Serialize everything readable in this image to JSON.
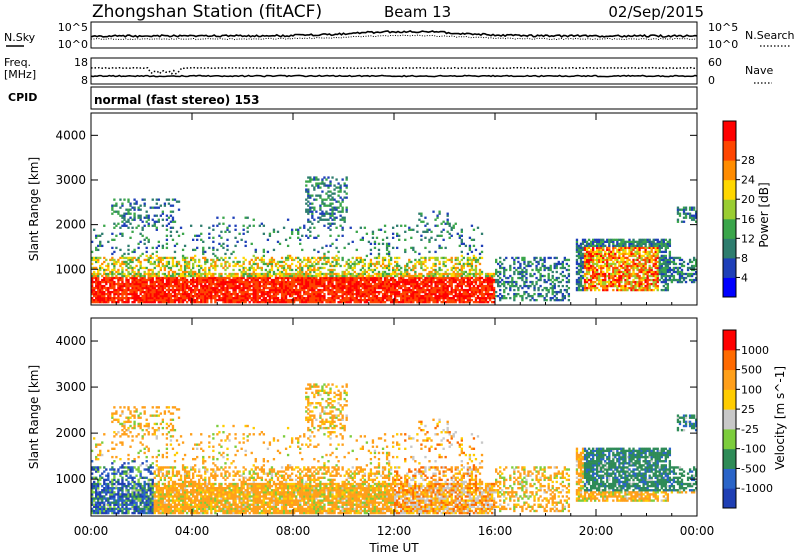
{
  "header": {
    "title": "Zhongshan Station (fitACF)",
    "beam": "Beam 13",
    "date": "02/Sep/2015"
  },
  "noise_panel": {
    "left_label": "N.Sky",
    "left_ticks": [
      "10^5",
      "10^0"
    ],
    "right_label": "N.Search",
    "right_ticks": [
      "10^5",
      "10^0"
    ]
  },
  "freq_panel": {
    "left_label_1": "Freq.",
    "left_label_2": "[MHz]",
    "left_ticks": [
      "18",
      "8"
    ],
    "right_label": "Nave",
    "right_ticks": [
      "60",
      "0"
    ]
  },
  "cpid": {
    "label": "CPID",
    "mode": "normal (fast stereo) 153"
  },
  "chart_data": [
    {
      "type": "heatmap",
      "name": "power",
      "ylabel": "Slant Range [km]",
      "ylim": [
        200,
        4500
      ],
      "yticks": [
        "1000",
        "2000",
        "3000",
        "4000"
      ],
      "xticks": [
        "00:00",
        "04:00",
        "08:00",
        "12:00",
        "16:00",
        "20:00",
        "00:00"
      ],
      "colorbar": {
        "label": "Power [dB]",
        "ticks": [
          "4",
          "8",
          "12",
          "16",
          "20",
          "24",
          "28"
        ],
        "colors": [
          "#0000ff",
          "#1e3fb8",
          "#2e7d6e",
          "#3aa54a",
          "#9acd32",
          "#ffd700",
          "#ff8c00",
          "#ff4500",
          "#ff0000"
        ]
      }
    },
    {
      "type": "heatmap",
      "name": "velocity",
      "ylabel": "Slant Range [km]",
      "ylim": [
        200,
        4500
      ],
      "yticks": [
        "1000",
        "2000",
        "3000",
        "4000"
      ],
      "xticks": [
        "00:00",
        "04:00",
        "08:00",
        "12:00",
        "16:00",
        "20:00",
        "00:00"
      ],
      "xlabel": "Time UT",
      "colorbar": {
        "label": "Velocity [m s^-1]",
        "ticks": [
          "1000",
          "500",
          "100",
          "25",
          "-25",
          "-100",
          "-500",
          "-1000"
        ],
        "colors": [
          "#1f3fb4",
          "#2a64c8",
          "#2e8b57",
          "#7ccd3c",
          "#c8c8c8",
          "#ffcc00",
          "#ff9f1a",
          "#ff6a00",
          "#ff0000"
        ]
      }
    }
  ]
}
